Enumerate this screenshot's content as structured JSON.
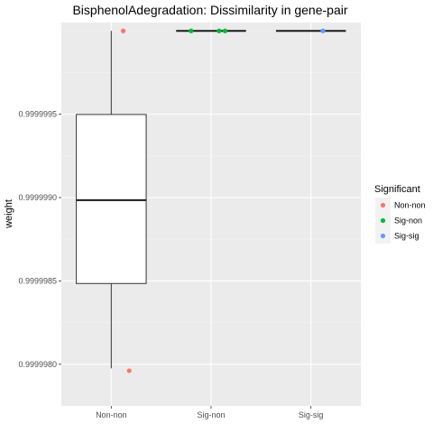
{
  "chart_data": {
    "type": "boxplot",
    "title": "BisphenolAdegradation: Dissimilarity in gene-pair",
    "xlabel": "",
    "ylabel": "weight",
    "ylim": [
      0.99999775,
      1.00000005
    ],
    "yticks": [
      0.999998,
      0.9999985,
      0.999999,
      0.9999995
    ],
    "ytick_labels": [
      "0.9999980",
      "0.9999985",
      "0.9999990",
      "0.9999995"
    ],
    "categories": [
      "Non-non",
      "Sig-non",
      "Sig-sig"
    ],
    "boxes": [
      {
        "category": "Non-non",
        "lower_whisker": 0.9999979755,
        "q1": 0.9999984845,
        "median": 0.9999989845,
        "q3": 0.9999994985,
        "upper_whisker": 1.0
      },
      {
        "category": "Sig-non",
        "lower_whisker": 1.0,
        "q1": 1.0,
        "median": 1.0,
        "q3": 1.0,
        "upper_whisker": 1.0
      },
      {
        "category": "Sig-sig",
        "lower_whisker": 1.0,
        "q1": 1.0,
        "median": 1.0,
        "q3": 1.0,
        "upper_whisker": 1.0
      }
    ],
    "points": [
      {
        "category": "Non-non",
        "offset": 0.12,
        "y": 1.0,
        "series": "Non-non"
      },
      {
        "category": "Non-non",
        "offset": 0.18,
        "y": 0.9999979615,
        "series": "Non-non"
      },
      {
        "category": "Sig-non",
        "offset": -0.2,
        "y": 1.0,
        "series": "Sig-non"
      },
      {
        "category": "Sig-non",
        "offset": 0.08,
        "y": 1.0,
        "series": "Sig-non"
      },
      {
        "category": "Sig-non",
        "offset": 0.14,
        "y": 1.0,
        "series": "Sig-non"
      },
      {
        "category": "Sig-sig",
        "offset": 0.12,
        "y": 1.0,
        "series": "Sig-sig"
      }
    ],
    "legend": {
      "title": "Significant",
      "placement": "right",
      "entries": [
        {
          "label": "Non-non",
          "color": "#F8766D"
        },
        {
          "label": "Sig-non",
          "color": "#00BA38"
        },
        {
          "label": "Sig-sig",
          "color": "#619CFF"
        }
      ]
    },
    "grid": true,
    "panel_color": "#EBEBEB"
  }
}
